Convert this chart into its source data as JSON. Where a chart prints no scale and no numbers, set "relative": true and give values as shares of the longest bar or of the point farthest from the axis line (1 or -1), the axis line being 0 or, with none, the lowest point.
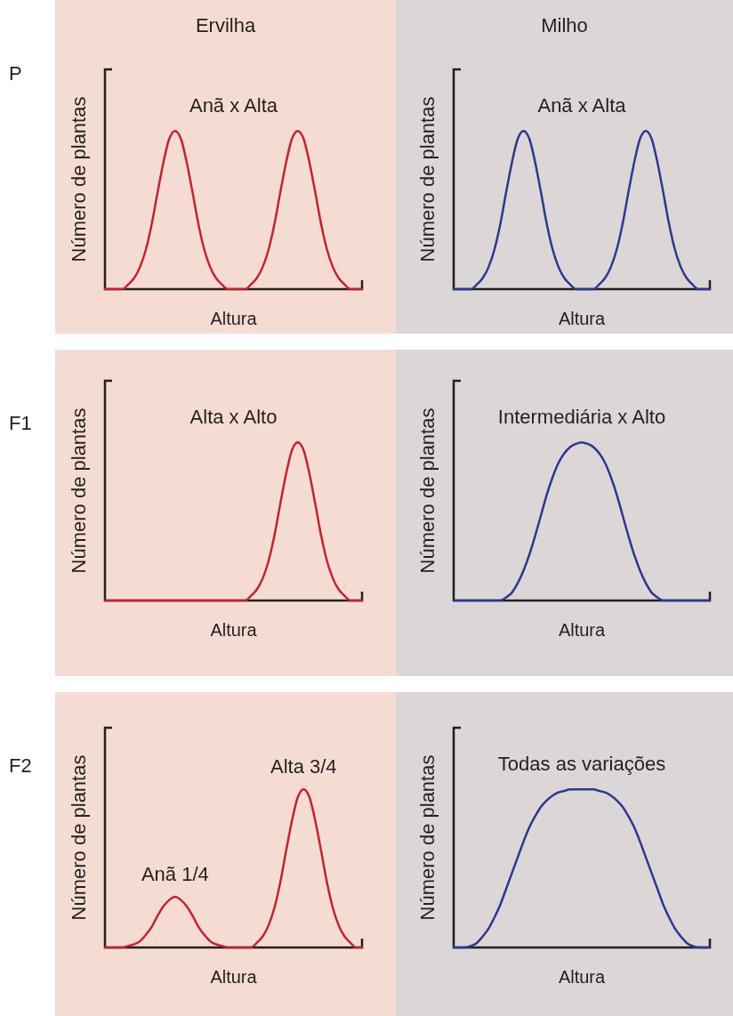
{
  "chart_data": [
    {
      "type": "line",
      "title": "Ervilha",
      "subtitle": "P",
      "xlabel": "Altura",
      "ylabel": "Número de plantas",
      "relative": true,
      "annotations": [
        "Anã x Alta"
      ],
      "categories": [
        null,
        null,
        null,
        null,
        null,
        null,
        null,
        null,
        null,
        null,
        null,
        null,
        null,
        null,
        null,
        null,
        null,
        null,
        null,
        null,
        null,
        null,
        null,
        null,
        null,
        null,
        null,
        null,
        null,
        null,
        null,
        null,
        null,
        null,
        null,
        null,
        null,
        null,
        null,
        null,
        null,
        null,
        null,
        null,
        null
      ],
      "series": [
        {
          "color": "#c8202f",
          "values": [
            0,
            0,
            0,
            0,
            0.03,
            0.07,
            0.14,
            0.25,
            0.41,
            0.61,
            0.8,
            0.95,
            1,
            0.95,
            0.8,
            0.61,
            0.41,
            0.25,
            0.14,
            0.07,
            0.03,
            0,
            0,
            0,
            0,
            0.03,
            0.07,
            0.14,
            0.25,
            0.41,
            0.61,
            0.8,
            0.95,
            1,
            0.95,
            0.8,
            0.61,
            0.41,
            0.25,
            0.14,
            0.07,
            0.03,
            0,
            0,
            0
          ]
        }
      ]
    },
    {
      "type": "line",
      "title": "Milho",
      "xlabel": "Altura",
      "ylabel": "Número de plantas",
      "relative": true,
      "annotations": [
        "Anã x Alta"
      ],
      "categories": [
        null,
        null,
        null,
        null,
        null,
        null,
        null,
        null,
        null,
        null,
        null,
        null,
        null,
        null,
        null,
        null,
        null,
        null,
        null,
        null,
        null,
        null,
        null,
        null,
        null,
        null,
        null,
        null,
        null,
        null,
        null,
        null,
        null,
        null,
        null,
        null,
        null,
        null,
        null,
        null,
        null,
        null,
        null,
        null,
        null
      ],
      "series": [
        {
          "color": "#2b3990",
          "values": [
            0,
            0,
            0,
            0,
            0.03,
            0.07,
            0.14,
            0.25,
            0.41,
            0.61,
            0.8,
            0.95,
            1,
            0.95,
            0.8,
            0.61,
            0.41,
            0.25,
            0.14,
            0.07,
            0.03,
            0,
            0,
            0,
            0,
            0.03,
            0.07,
            0.14,
            0.25,
            0.41,
            0.61,
            0.8,
            0.95,
            1,
            0.95,
            0.8,
            0.61,
            0.41,
            0.25,
            0.14,
            0.07,
            0.03,
            0,
            0,
            0
          ]
        }
      ]
    },
    {
      "type": "line",
      "subtitle": "F1",
      "xlabel": "Altura",
      "ylabel": "Número de plantas",
      "relative": true,
      "annotations": [
        "Alta x Alto"
      ],
      "categories": [
        null,
        null,
        null,
        null,
        null,
        null,
        null,
        null,
        null,
        null,
        null,
        null,
        null,
        null,
        null,
        null,
        null,
        null,
        null,
        null,
        null,
        null,
        null,
        null,
        null,
        null,
        null,
        null,
        null,
        null,
        null,
        null,
        null,
        null,
        null,
        null,
        null,
        null,
        null,
        null,
        null,
        null,
        null,
        null,
        null
      ],
      "series": [
        {
          "color": "#c8202f",
          "values": [
            0,
            0,
            0,
            0,
            0,
            0,
            0,
            0,
            0,
            0,
            0,
            0,
            0,
            0,
            0,
            0,
            0,
            0,
            0,
            0,
            0,
            0,
            0,
            0,
            0,
            0.03,
            0.07,
            0.14,
            0.25,
            0.41,
            0.61,
            0.8,
            0.95,
            1,
            0.95,
            0.8,
            0.61,
            0.41,
            0.25,
            0.14,
            0.07,
            0.03,
            0,
            0,
            0
          ]
        }
      ]
    },
    {
      "type": "line",
      "xlabel": "Altura",
      "ylabel": "Número de plantas",
      "relative": true,
      "annotations": [
        "Intermediária x Alto"
      ],
      "categories": [
        null,
        null,
        null,
        null,
        null,
        null,
        null,
        null,
        null,
        null,
        null,
        null,
        null,
        null,
        null,
        null,
        null,
        null,
        null,
        null,
        null,
        null,
        null,
        null,
        null,
        null,
        null,
        null,
        null,
        null,
        null,
        null,
        null,
        null,
        null,
        null,
        null,
        null,
        null,
        null,
        null,
        null,
        null,
        null,
        null
      ],
      "series": [
        {
          "color": "#2b3990",
          "values": [
            0,
            0,
            0,
            0,
            0,
            0,
            0,
            0,
            0,
            0.02,
            0.05,
            0.11,
            0.19,
            0.29,
            0.41,
            0.54,
            0.67,
            0.78,
            0.87,
            0.93,
            0.97,
            0.99,
            1,
            0.99,
            0.97,
            0.93,
            0.87,
            0.78,
            0.67,
            0.54,
            0.41,
            0.29,
            0.19,
            0.11,
            0.05,
            0.02,
            0,
            0,
            0,
            0,
            0,
            0,
            0,
            0,
            0
          ]
        }
      ]
    },
    {
      "type": "line",
      "subtitle": "F2",
      "xlabel": "Altura",
      "ylabel": "Número de plantas",
      "relative": true,
      "annotations": [
        "Anã 1/4",
        "Alta 3/4"
      ],
      "categories": [
        null,
        null,
        null,
        null,
        null,
        null,
        null,
        null,
        null,
        null,
        null,
        null,
        null,
        null,
        null,
        null,
        null,
        null,
        null,
        null,
        null,
        null,
        null,
        null,
        null,
        null,
        null,
        null,
        null,
        null,
        null,
        null,
        null,
        null,
        null,
        null,
        null,
        null,
        null,
        null,
        null,
        null,
        null,
        null,
        null
      ],
      "series": [
        {
          "color": "#c8202f",
          "values": [
            0,
            0,
            0,
            0,
            0.01,
            0.02,
            0.04,
            0.08,
            0.13,
            0.2,
            0.26,
            0.3,
            0.32,
            0.3,
            0.26,
            0.2,
            0.13,
            0.08,
            0.04,
            0.02,
            0.01,
            0,
            0,
            0,
            0,
            0,
            0.03,
            0.07,
            0.14,
            0.25,
            0.41,
            0.61,
            0.8,
            0.95,
            1,
            0.95,
            0.8,
            0.61,
            0.41,
            0.25,
            0.14,
            0.07,
            0.03,
            0,
            0
          ]
        }
      ]
    },
    {
      "type": "line",
      "xlabel": "Altura",
      "ylabel": "Número de plantas",
      "relative": true,
      "annotations": [
        "Todas as variações"
      ],
      "categories": [
        null,
        null,
        null,
        null,
        null,
        null,
        null,
        null,
        null,
        null,
        null,
        null,
        null,
        null,
        null,
        null,
        null,
        null,
        null,
        null,
        null,
        null,
        null,
        null,
        null,
        null,
        null,
        null,
        null,
        null,
        null,
        null,
        null,
        null,
        null,
        null,
        null,
        null,
        null,
        null,
        null,
        null,
        null,
        null,
        null
      ],
      "series": [
        {
          "color": "#2b3990",
          "values": [
            0,
            0,
            0,
            0.01,
            0.03,
            0.07,
            0.12,
            0.19,
            0.27,
            0.37,
            0.47,
            0.57,
            0.67,
            0.76,
            0.83,
            0.89,
            0.93,
            0.96,
            0.98,
            0.99,
            1,
            1,
            1,
            1,
            1,
            0.99,
            0.98,
            0.96,
            0.93,
            0.89,
            0.83,
            0.76,
            0.67,
            0.57,
            0.47,
            0.37,
            0.27,
            0.19,
            0.12,
            0.07,
            0.03,
            0.01,
            0,
            0,
            0
          ]
        }
      ]
    }
  ]
}
